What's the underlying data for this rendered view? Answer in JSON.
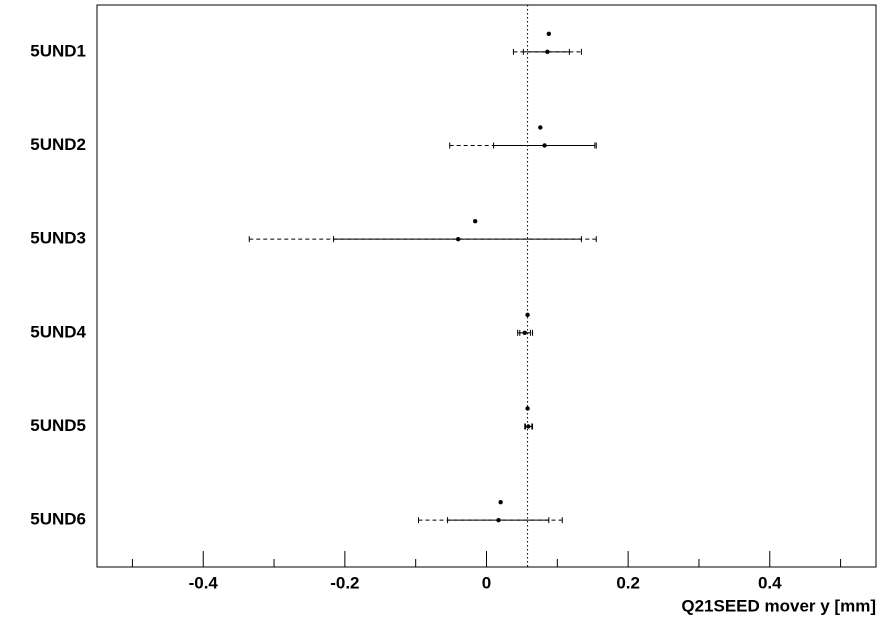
{
  "chart_data": {
    "type": "errorbar",
    "categories": [
      "5UND1",
      "5UND2",
      "5UND3",
      "5UND4",
      "5UND5",
      "5UND6"
    ],
    "markers": [
      0.088,
      0.076,
      -0.016,
      0.058,
      0.058,
      0.02
    ],
    "values": [
      0.086,
      0.082,
      -0.04,
      0.054,
      0.059,
      0.017
    ],
    "inner_low": [
      0.052,
      0.01,
      -0.216,
      0.047,
      0.055,
      -0.055
    ],
    "inner_high": [
      0.117,
      0.153,
      0.134,
      0.062,
      0.064,
      0.088
    ],
    "outer_low": [
      0.038,
      -0.052,
      -0.335,
      0.044,
      0.054,
      -0.096
    ],
    "outer_high": [
      0.134,
      0.155,
      0.155,
      0.065,
      0.065,
      0.107
    ],
    "reference_x": 0.058,
    "xlim": [
      -0.55,
      0.55
    ],
    "xticks": [
      -0.4,
      -0.2,
      0,
      0.2,
      0.4
    ],
    "minor_xticks": [
      -0.5,
      -0.3,
      -0.1,
      0.1,
      0.3,
      0.5
    ],
    "xlabel": "Q21SEED mover y [mm]",
    "color": "#000000"
  }
}
